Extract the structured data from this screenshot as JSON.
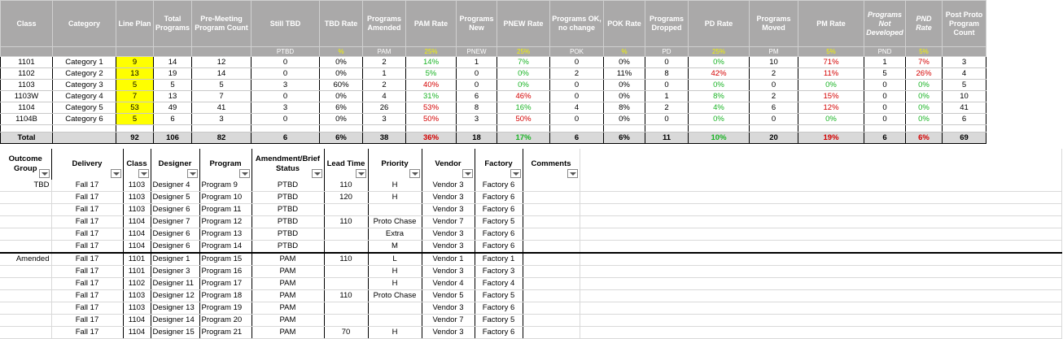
{
  "summary": {
    "headers": [
      "Class",
      "Category",
      "Line Plan",
      "Total Programs",
      "Pre-Meeting Program Count",
      "Still TBD",
      "TBD Rate",
      "Programs Amended",
      "PAM Rate",
      "Programs New",
      "PNEW Rate",
      "Programs OK, no change",
      "POK Rate",
      "Programs Dropped",
      "PD Rate",
      "Programs Moved",
      "PM Rate",
      "Programs Not Developed",
      "PND Rate",
      "Post Proto Program Count"
    ],
    "codes": [
      "",
      "",
      "",
      "",
      "",
      "PTBD",
      "%",
      "PAM",
      "25%",
      "PNEW",
      "25%",
      "POK",
      "%",
      "PD",
      "25%",
      "PM",
      "5%",
      "PND",
      "5%",
      ""
    ],
    "rows": [
      [
        "1101",
        "Category 1",
        "9",
        "14",
        "12",
        "0",
        "0%",
        "2",
        "14%",
        "1",
        "7%",
        "0",
        "0%",
        "0",
        "0%",
        "10",
        "71%",
        "1",
        "7%",
        "3"
      ],
      [
        "1102",
        "Category 2",
        "13",
        "19",
        "14",
        "0",
        "0%",
        "1",
        "5%",
        "0",
        "0%",
        "2",
        "11%",
        "8",
        "42%",
        "2",
        "11%",
        "5",
        "26%",
        "4"
      ],
      [
        "1103",
        "Category 3",
        "5",
        "5",
        "5",
        "3",
        "60%",
        "2",
        "40%",
        "0",
        "0%",
        "0",
        "0%",
        "0",
        "0%",
        "0",
        "0%",
        "0",
        "0%",
        "5"
      ],
      [
        "1103W",
        "Category 4",
        "7",
        "13",
        "7",
        "0",
        "0%",
        "4",
        "31%",
        "6",
        "46%",
        "0",
        "0%",
        "1",
        "8%",
        "2",
        "15%",
        "0",
        "0%",
        "10"
      ],
      [
        "1104",
        "Category 5",
        "53",
        "49",
        "41",
        "3",
        "6%",
        "26",
        "53%",
        "8",
        "16%",
        "4",
        "8%",
        "2",
        "4%",
        "6",
        "12%",
        "0",
        "0%",
        "41"
      ],
      [
        "1104B",
        "Category 6",
        "5",
        "6",
        "3",
        "0",
        "0%",
        "3",
        "50%",
        "3",
        "50%",
        "0",
        "0%",
        "0",
        "0%",
        "0",
        "0%",
        "0",
        "0%",
        "6"
      ]
    ],
    "total": [
      "Total",
      "",
      "92",
      "106",
      "82",
      "6",
      "6%",
      "38",
      "36%",
      "18",
      "17%",
      "6",
      "6%",
      "11",
      "10%",
      "20",
      "19%",
      "6",
      "6%",
      "69"
    ],
    "colors": {
      "header_bg": "#aaa9a9",
      "highlight": "#ffff00",
      "good": "#19b324",
      "bad": "#d40000",
      "total_bg": "#d9d9d9"
    }
  },
  "outcome": {
    "headers": [
      "Outcome Group",
      "Delivery",
      "Class",
      "Designer",
      "Program",
      "Amendment/Brief Status",
      "Lead Time",
      "Priority",
      "Vendor",
      "Factory",
      "Comments"
    ],
    "rows": [
      [
        "TBD",
        "Fall 17",
        "1103",
        "Designer 4",
        "Program 9",
        "PTBD",
        "110",
        "H",
        "Vendor 3",
        "Factory 6"
      ],
      [
        "",
        "Fall 17",
        "1103",
        "Designer 5",
        "Program 10",
        "PTBD",
        "120",
        "H",
        "Vendor 3",
        "Factory 6"
      ],
      [
        "",
        "Fall 17",
        "1103",
        "Designer 6",
        "Program 11",
        "PTBD",
        "",
        "",
        "Vendor 3",
        "Factory 6"
      ],
      [
        "",
        "Fall 17",
        "1104",
        "Designer 7",
        "Program 12",
        "PTBD",
        "110",
        "Proto Chase",
        "Vendor 7",
        "Factory 5"
      ],
      [
        "",
        "Fall 17",
        "1104",
        "Designer 6",
        "Program 13",
        "PTBD",
        "",
        "Extra",
        "Vendor 3",
        "Factory 6"
      ],
      [
        "",
        "Fall 17",
        "1104",
        "Designer 6",
        "Program 14",
        "PTBD",
        "",
        "M",
        "Vendor 3",
        "Factory 6"
      ],
      [
        "Amended",
        "Fall 17",
        "1101",
        "Designer 1",
        "Program 15",
        "PAM",
        "110",
        "L",
        "Vendor 1",
        "Factory 1"
      ],
      [
        "",
        "Fall 17",
        "1101",
        "Designer 3",
        "Program 16",
        "PAM",
        "",
        "H",
        "Vendor 3",
        "Factory 3"
      ],
      [
        "",
        "Fall 17",
        "1102",
        "Designer 11",
        "Program 17",
        "PAM",
        "",
        "H",
        "Vendor 4",
        "Factory 4"
      ],
      [
        "",
        "Fall 17",
        "1103",
        "Designer 12",
        "Program 18",
        "PAM",
        "110",
        "Proto Chase",
        "Vendor 5",
        "Factory 5"
      ],
      [
        "",
        "Fall 17",
        "1103",
        "Designer 13",
        "Program 19",
        "PAM",
        "",
        "",
        "Vendor 3",
        "Factory 6"
      ],
      [
        "",
        "Fall 17",
        "1104",
        "Designer 14",
        "Program 20",
        "PAM",
        "",
        "",
        "Vendor 7",
        "Factory 5"
      ],
      [
        "",
        "Fall 17",
        "1104",
        "Designer 15",
        "Program 21",
        "PAM",
        "70",
        "H",
        "Vendor 3",
        "Factory 6"
      ]
    ]
  }
}
